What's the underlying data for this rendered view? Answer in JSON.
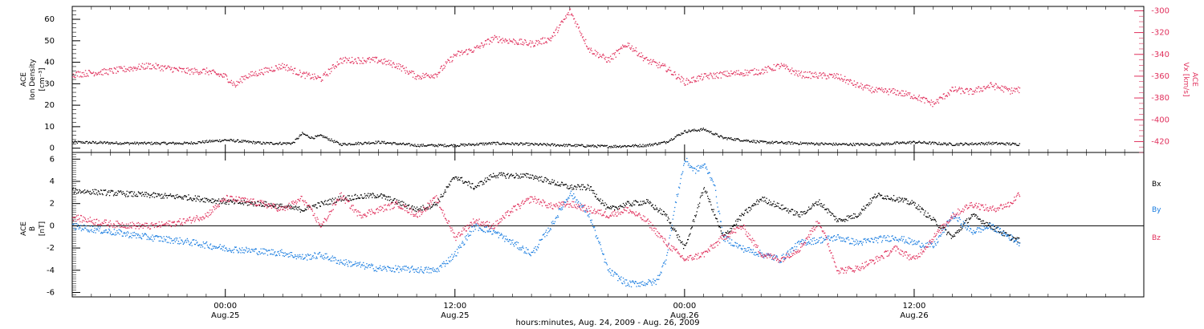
{
  "chart_data": {
    "type": "scatter",
    "xlabel": "hours:minutes, Aug. 24, 2009 - Aug. 26, 2009",
    "x_ticks": [
      {
        "time": "00:00",
        "date": "Aug.25",
        "hours": 0
      },
      {
        "time": "12:00",
        "date": "Aug.25",
        "hours": 12
      },
      {
        "time": "00:00",
        "date": "Aug.26",
        "hours": 24
      },
      {
        "time": "12:00",
        "date": "Aug.26",
        "hours": 36
      }
    ],
    "x_range_hours": [
      -8,
      48
    ],
    "panels": [
      {
        "id": "top",
        "ylabel_lines": [
          "ACE",
          "Ion Density",
          "[cm⁻³]"
        ],
        "ylim": [
          -2,
          66
        ],
        "yticks": [
          0,
          10,
          20,
          30,
          40,
          50,
          60
        ],
        "right_ylabel_lines": [
          "ACE",
          "Vx [km/s]"
        ],
        "right_ylim": [
          -430,
          -296
        ],
        "right_yticks": [
          -300,
          -320,
          -340,
          -360,
          -380,
          -400,
          -420
        ],
        "right_axis_color": "#e0305c",
        "series": [
          {
            "quantity": "Ion Density",
            "axis": "left",
            "color": "#000000",
            "x": [
              -8,
              -5,
              -2,
              0,
              2,
              3.5,
              4,
              4.5,
              5,
              6,
              8,
              10,
              12,
              14,
              16,
              18,
              20,
              22,
              23,
              24,
              25,
              26,
              28,
              30,
              32,
              34,
              36,
              38,
              40,
              41.5
            ],
            "y": [
              3,
              2.5,
              2.5,
              4,
              2.5,
              2.5,
              7,
              5,
              6,
              2,
              3,
              1.5,
              1.5,
              2.5,
              2,
              1.5,
              1,
              1.5,
              3,
              8,
              9,
              5,
              3,
              2.5,
              2,
              2,
              3,
              2,
              2.5,
              2
            ]
          },
          {
            "quantity": "Vx",
            "axis": "right",
            "color": "#e0305c",
            "x": [
              -8,
              -6,
              -4,
              -2,
              -1,
              0,
              0.5,
              1,
              2,
              3,
              4,
              5,
              6,
              8,
              9,
              10,
              11,
              12,
              13,
              14,
              16,
              17,
              18,
              19,
              20,
              21,
              22,
              23,
              24,
              25,
              26,
              28,
              29,
              30,
              32,
              33,
              34,
              35,
              36,
              37,
              38,
              39,
              40,
              41,
              41.5
            ],
            "y": [
              -358,
              -355,
              -350,
              -355,
              -355,
              -360,
              -368,
              -360,
              -355,
              -350,
              -358,
              -362,
              -345,
              -345,
              -350,
              -360,
              -358,
              -340,
              -335,
              -325,
              -330,
              -325,
              -300,
              -335,
              -345,
              -330,
              -345,
              -352,
              -365,
              -360,
              -358,
              -355,
              -350,
              -358,
              -360,
              -368,
              -373,
              -374,
              -378,
              -385,
              -372,
              -374,
              -368,
              -373,
              -372
            ]
          }
        ]
      },
      {
        "id": "bottom",
        "ylabel_lines": [
          "ACE",
          "B",
          "[nT]"
        ],
        "ylim": [
          -6.4,
          6.6
        ],
        "yticks": [
          -6,
          -4,
          -2,
          0,
          2,
          4,
          6
        ],
        "zero_line": true,
        "legend": [
          {
            "label": "Bx",
            "color": "#000000"
          },
          {
            "label": "By",
            "color": "#1a7de0"
          },
          {
            "label": "Bz",
            "color": "#e0305c"
          }
        ],
        "legend_position": "right",
        "series": [
          {
            "quantity": "Bx",
            "color": "#000000",
            "x": [
              -8,
              -6,
              -4,
              -2,
              0,
              2,
              4,
              5,
              6,
              8,
              10,
              11,
              12,
              13,
              14,
              16,
              17,
              18,
              19,
              20,
              21,
              22,
              23,
              24,
              25,
              26,
              27,
              28,
              30,
              31,
              32,
              33,
              34,
              35,
              36,
              37,
              38,
              39,
              40,
              41,
              41.5
            ],
            "y": [
              3.2,
              3,
              2.8,
              2.6,
              2.2,
              2,
              1.5,
              2,
              2.5,
              2.8,
              1.5,
              2,
              4.5,
              3.5,
              4.6,
              4.5,
              4,
              3.5,
              3.5,
              1.5,
              2,
              2.2,
              1,
              -2,
              3.5,
              -1,
              1,
              2.5,
              1,
              2.2,
              0.5,
              1,
              2.8,
              2.5,
              2,
              0.5,
              -1,
              1,
              0,
              -1,
              -1.3
            ]
          },
          {
            "quantity": "By",
            "color": "#1a7de0",
            "x": [
              -8,
              -6,
              -4,
              -2,
              0,
              2,
              3,
              4,
              5,
              6,
              8,
              10,
              11,
              12,
              13,
              14,
              15,
              16,
              17,
              18,
              19,
              20,
              21,
              22,
              22.5,
              23,
              23.5,
              24,
              24.5,
              25,
              25.5,
              26,
              27,
              28,
              29,
              30,
              32,
              33,
              34,
              35,
              36,
              37,
              38,
              39,
              40,
              41,
              41.5
            ],
            "y": [
              0,
              -0.5,
              -1,
              -1.4,
              -2,
              -2.3,
              -2.4,
              -2.8,
              -2.6,
              -3.2,
              -3.8,
              -3.9,
              -4,
              -2.5,
              0,
              -0.5,
              -1.5,
              -2.5,
              0,
              3,
              1,
              -4,
              -5.2,
              -5.1,
              -5,
              -3,
              2,
              6,
              5,
              5.5,
              4,
              -1,
              -2,
              -2.5,
              -3,
              -1.5,
              -1,
              -1.5,
              -1.2,
              -1,
              -1.5,
              -1.8,
              1,
              -0.5,
              0,
              -1,
              -1.5
            ]
          },
          {
            "quantity": "Bz",
            "color": "#e0305c",
            "x": [
              -8,
              -6,
              -4,
              -3,
              -2,
              -1,
              0,
              1,
              2,
              3,
              4,
              5,
              6,
              7,
              8,
              9,
              10,
              11,
              12,
              13,
              14,
              15,
              16,
              17,
              18,
              19,
              20,
              21,
              22,
              23,
              24,
              25,
              26,
              27,
              28,
              29,
              30,
              31,
              32,
              33,
              34,
              35,
              36,
              37,
              38,
              39,
              40,
              41,
              41.5
            ],
            "y": [
              0.8,
              0.2,
              0,
              0.2,
              0.5,
              1,
              2.5,
              2.3,
              2,
              1.5,
              2.5,
              0,
              2.8,
              1,
              1.5,
              2,
              1,
              2.5,
              -1,
              0.5,
              0,
              1.5,
              2.5,
              1.8,
              2,
              1.5,
              1,
              1.5,
              0.5,
              -1.5,
              -3,
              -2.5,
              -1,
              0,
              -2.5,
              -3,
              -2,
              0.5,
              -4,
              -3.8,
              -3,
              -2,
              -3,
              -1,
              1,
              2,
              1.5,
              2,
              3
            ]
          }
        ]
      }
    ]
  }
}
